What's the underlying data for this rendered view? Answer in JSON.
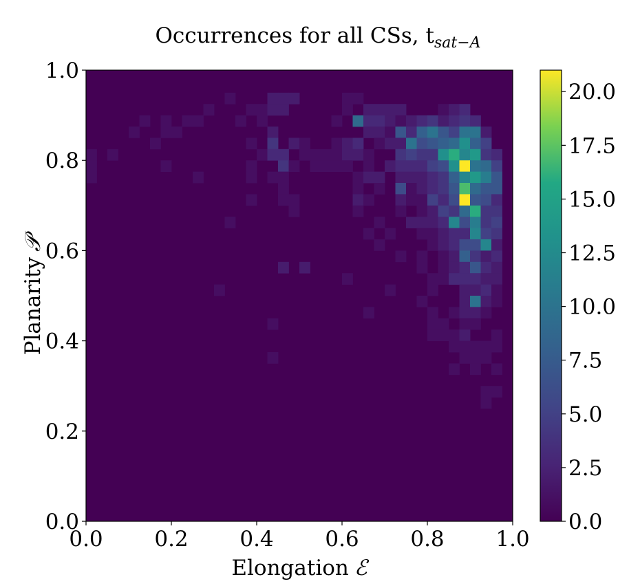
{
  "chart_data": {
    "type": "heatmap",
    "title": "Occurrences  for all CSs, t",
    "title_subscript": "sat−A",
    "xlabel": "Elongation",
    "xlabel_symbol": "ℰ",
    "ylabel": "Planarity",
    "ylabel_symbol": "𝒫",
    "xlim": [
      0.0,
      1.0
    ],
    "ylim": [
      0.0,
      1.0
    ],
    "xticks": [
      "0.0",
      "0.2",
      "0.4",
      "0.6",
      "0.8",
      "1.0"
    ],
    "yticks": [
      "0.0",
      "0.2",
      "0.4",
      "0.6",
      "0.8",
      "1.0"
    ],
    "bins": 40,
    "colormap": "viridis",
    "colorbar": {
      "min": 0,
      "max": 21,
      "ticks": [
        "0.0",
        "2.5",
        "5.0",
        "7.5",
        "10.0",
        "12.5",
        "15.0",
        "17.5",
        "20.0"
      ],
      "tick_values": [
        0,
        2.5,
        5,
        7.5,
        10,
        12.5,
        15,
        17.5,
        20
      ]
    },
    "grid": false,
    "cells": [
      [
        0.0125,
        0.8125,
        1
      ],
      [
        0.0125,
        0.7875,
        1
      ],
      [
        0.0125,
        0.7625,
        1
      ],
      [
        0.0625,
        0.8125,
        1
      ],
      [
        0.1125,
        0.8625,
        1
      ],
      [
        0.1375,
        0.8875,
        1
      ],
      [
        0.1625,
        0.8375,
        1
      ],
      [
        0.1875,
        0.8875,
        1
      ],
      [
        0.1875,
        0.8625,
        1
      ],
      [
        0.2125,
        0.8625,
        1
      ],
      [
        0.1875,
        0.7875,
        1
      ],
      [
        0.2375,
        0.8875,
        1
      ],
      [
        0.2625,
        0.8875,
        1
      ],
      [
        0.2625,
        0.7625,
        1
      ],
      [
        0.2875,
        0.9125,
        1
      ],
      [
        0.3125,
        0.5125,
        1
      ],
      [
        0.3375,
        0.9375,
        1
      ],
      [
        0.3375,
        0.6625,
        1
      ],
      [
        0.3625,
        0.8875,
        1
      ],
      [
        0.3875,
        0.7875,
        1
      ],
      [
        0.3875,
        0.7625,
        1
      ],
      [
        0.3875,
        0.8375,
        1
      ],
      [
        0.3875,
        0.7125,
        1
      ],
      [
        0.3875,
        0.9125,
        1
      ],
      [
        0.4125,
        0.9125,
        1
      ],
      [
        0.4125,
        0.8875,
        1
      ],
      [
        0.4125,
        0.8125,
        1
      ],
      [
        0.4375,
        0.9375,
        2
      ],
      [
        0.4375,
        0.9125,
        2
      ],
      [
        0.4375,
        0.8625,
        2
      ],
      [
        0.4375,
        0.8375,
        4
      ],
      [
        0.4375,
        0.8125,
        3
      ],
      [
        0.4375,
        0.7625,
        1
      ],
      [
        0.4375,
        0.4375,
        1
      ],
      [
        0.4375,
        0.3625,
        1
      ],
      [
        0.4625,
        0.9375,
        2
      ],
      [
        0.4625,
        0.9125,
        2
      ],
      [
        0.4625,
        0.8125,
        3
      ],
      [
        0.4625,
        0.7875,
        4
      ],
      [
        0.4625,
        0.7625,
        1
      ],
      [
        0.4625,
        0.7375,
        1
      ],
      [
        0.4625,
        0.7125,
        1
      ],
      [
        0.4625,
        0.5625,
        2
      ],
      [
        0.4875,
        0.9375,
        2
      ],
      [
        0.4875,
        0.8375,
        2
      ],
      [
        0.4875,
        0.7875,
        1
      ],
      [
        0.4875,
        0.7125,
        1
      ],
      [
        0.4875,
        0.6875,
        1
      ],
      [
        0.5125,
        0.8375,
        1
      ],
      [
        0.5125,
        0.8125,
        1
      ],
      [
        0.5125,
        0.5625,
        2
      ],
      [
        0.5375,
        0.8125,
        1
      ],
      [
        0.5375,
        0.7875,
        1
      ],
      [
        0.5625,
        0.7875,
        1
      ],
      [
        0.5625,
        0.8125,
        1
      ],
      [
        0.5875,
        0.8875,
        1
      ],
      [
        0.5875,
        0.8375,
        1
      ],
      [
        0.5875,
        0.8125,
        1
      ],
      [
        0.5875,
        0.7875,
        1
      ],
      [
        0.5875,
        0.7875,
        1
      ],
      [
        0.6125,
        0.9375,
        1
      ],
      [
        0.6125,
        0.9125,
        1
      ],
      [
        0.6125,
        0.8375,
        2
      ],
      [
        0.6125,
        0.8125,
        2
      ],
      [
        0.6125,
        0.7875,
        1
      ],
      [
        0.6125,
        0.5375,
        1
      ],
      [
        0.6375,
        0.9375,
        1
      ],
      [
        0.6375,
        0.8875,
        9
      ],
      [
        0.6375,
        0.8375,
        3
      ],
      [
        0.6375,
        0.8125,
        2
      ],
      [
        0.6375,
        0.7625,
        1
      ],
      [
        0.6375,
        0.7375,
        1
      ],
      [
        0.6375,
        0.7125,
        2
      ],
      [
        0.6375,
        0.6875,
        1
      ],
      [
        0.6625,
        0.9125,
        2
      ],
      [
        0.6625,
        0.8875,
        3
      ],
      [
        0.6625,
        0.8625,
        2
      ],
      [
        0.6625,
        0.8125,
        1
      ],
      [
        0.6625,
        0.7875,
        1
      ],
      [
        0.6625,
        0.7625,
        2
      ],
      [
        0.6625,
        0.7125,
        1
      ],
      [
        0.6625,
        0.6375,
        1
      ],
      [
        0.6625,
        0.4625,
        1
      ],
      [
        0.6875,
        0.9125,
        2
      ],
      [
        0.6875,
        0.8875,
        3
      ],
      [
        0.6875,
        0.8625,
        2
      ],
      [
        0.6875,
        0.8375,
        1
      ],
      [
        0.6875,
        0.7625,
        2
      ],
      [
        0.6875,
        0.7375,
        1
      ],
      [
        0.6875,
        0.6625,
        1
      ],
      [
        0.6875,
        0.6125,
        1
      ],
      [
        0.7125,
        0.9125,
        2
      ],
      [
        0.7125,
        0.8875,
        2
      ],
      [
        0.7125,
        0.8625,
        1
      ],
      [
        0.7125,
        0.8375,
        2
      ],
      [
        0.7125,
        0.7875,
        2
      ],
      [
        0.7125,
        0.6375,
        1
      ],
      [
        0.7125,
        0.5125,
        1
      ],
      [
        0.7375,
        0.9125,
        2
      ],
      [
        0.7375,
        0.8875,
        1
      ],
      [
        0.7375,
        0.8625,
        7
      ],
      [
        0.7375,
        0.8375,
        2
      ],
      [
        0.7375,
        0.8125,
        4
      ],
      [
        0.7375,
        0.7875,
        3
      ],
      [
        0.7375,
        0.7625,
        2
      ],
      [
        0.7375,
        0.7375,
        6
      ],
      [
        0.7375,
        0.7125,
        2
      ],
      [
        0.7375,
        0.6875,
        1
      ],
      [
        0.7375,
        0.5875,
        1
      ],
      [
        0.7625,
        0.8875,
        2
      ],
      [
        0.7625,
        0.8625,
        3
      ],
      [
        0.7625,
        0.8375,
        10
      ],
      [
        0.7625,
        0.8125,
        5
      ],
      [
        0.7625,
        0.7875,
        3
      ],
      [
        0.7625,
        0.7625,
        2
      ],
      [
        0.7625,
        0.7375,
        1
      ],
      [
        0.7625,
        0.7125,
        1
      ],
      [
        0.7625,
        0.6625,
        2
      ],
      [
        0.7875,
        0.8875,
        3
      ],
      [
        0.7875,
        0.8625,
        8
      ],
      [
        0.7875,
        0.8375,
        6
      ],
      [
        0.7875,
        0.8125,
        4
      ],
      [
        0.7875,
        0.7875,
        3
      ],
      [
        0.7875,
        0.7625,
        2
      ],
      [
        0.7875,
        0.7375,
        2
      ],
      [
        0.7875,
        0.7125,
        1
      ],
      [
        0.7875,
        0.6875,
        1
      ],
      [
        0.7875,
        0.6625,
        2
      ],
      [
        0.7875,
        0.6375,
        1
      ],
      [
        0.7875,
        0.5875,
        1
      ],
      [
        0.7875,
        0.5625,
        1
      ],
      [
        0.7875,
        0.4875,
        1
      ],
      [
        0.8125,
        0.8875,
        4
      ],
      [
        0.8125,
        0.8625,
        10
      ],
      [
        0.8125,
        0.8375,
        7
      ],
      [
        0.8125,
        0.8125,
        4
      ],
      [
        0.8125,
        0.7875,
        5
      ],
      [
        0.8125,
        0.7625,
        3
      ],
      [
        0.8125,
        0.7375,
        3
      ],
      [
        0.8125,
        0.7125,
        5
      ],
      [
        0.8125,
        0.6875,
        2
      ],
      [
        0.8125,
        0.6625,
        2
      ],
      [
        0.8125,
        0.6375,
        1
      ],
      [
        0.8125,
        0.6125,
        1
      ],
      [
        0.8125,
        0.5375,
        1
      ],
      [
        0.8125,
        0.5125,
        1
      ],
      [
        0.8125,
        0.4625,
        1
      ],
      [
        0.8125,
        0.4375,
        1
      ],
      [
        0.8125,
        0.4125,
        1
      ],
      [
        0.8375,
        0.9125,
        1
      ],
      [
        0.8375,
        0.8875,
        2
      ],
      [
        0.8375,
        0.8625,
        7
      ],
      [
        0.8375,
        0.8375,
        8
      ],
      [
        0.8375,
        0.8125,
        13
      ],
      [
        0.8375,
        0.7875,
        6
      ],
      [
        0.8375,
        0.7625,
        4
      ],
      [
        0.8375,
        0.7375,
        4
      ],
      [
        0.8375,
        0.7125,
        3
      ],
      [
        0.8375,
        0.6875,
        5
      ],
      [
        0.8375,
        0.6625,
        3
      ],
      [
        0.8375,
        0.6375,
        2
      ],
      [
        0.8375,
        0.6125,
        2
      ],
      [
        0.8375,
        0.5875,
        1
      ],
      [
        0.8375,
        0.5625,
        1
      ],
      [
        0.8375,
        0.5375,
        1
      ],
      [
        0.8375,
        0.4375,
        1
      ],
      [
        0.8375,
        0.4125,
        1
      ],
      [
        0.8625,
        0.9125,
        2
      ],
      [
        0.8625,
        0.8875,
        3
      ],
      [
        0.8625,
        0.8625,
        5
      ],
      [
        0.8625,
        0.8375,
        9
      ],
      [
        0.8625,
        0.8125,
        16
      ],
      [
        0.8625,
        0.7875,
        13
      ],
      [
        0.8625,
        0.7625,
        8
      ],
      [
        0.8625,
        0.7375,
        7
      ],
      [
        0.8625,
        0.7125,
        6
      ],
      [
        0.8625,
        0.6875,
        4
      ],
      [
        0.8625,
        0.6625,
        12
      ],
      [
        0.8625,
        0.6375,
        3
      ],
      [
        0.8625,
        0.6125,
        3
      ],
      [
        0.8625,
        0.5875,
        2
      ],
      [
        0.8625,
        0.5625,
        2
      ],
      [
        0.8625,
        0.5375,
        3
      ],
      [
        0.8625,
        0.4625,
        1
      ],
      [
        0.8625,
        0.4125,
        1
      ],
      [
        0.8625,
        0.3875,
        1
      ],
      [
        0.8625,
        0.3375,
        1
      ],
      [
        0.8875,
        0.9125,
        3
      ],
      [
        0.8875,
        0.8875,
        4
      ],
      [
        0.8875,
        0.8625,
        10
      ],
      [
        0.8875,
        0.8375,
        13
      ],
      [
        0.8875,
        0.8125,
        12
      ],
      [
        0.8875,
        0.7875,
        21
      ],
      [
        0.8875,
        0.7625,
        12
      ],
      [
        0.8875,
        0.7375,
        17
      ],
      [
        0.8875,
        0.7125,
        21
      ],
      [
        0.8875,
        0.6875,
        9
      ],
      [
        0.8875,
        0.6625,
        6
      ],
      [
        0.8875,
        0.6375,
        3
      ],
      [
        0.8875,
        0.6125,
        6
      ],
      [
        0.8875,
        0.5875,
        8
      ],
      [
        0.8875,
        0.5625,
        3
      ],
      [
        0.8875,
        0.5375,
        3
      ],
      [
        0.8875,
        0.5125,
        2
      ],
      [
        0.8875,
        0.4875,
        2
      ],
      [
        0.8875,
        0.4625,
        2
      ],
      [
        0.8875,
        0.4375,
        1
      ],
      [
        0.8875,
        0.4125,
        2
      ],
      [
        0.8875,
        0.3875,
        1
      ],
      [
        0.8875,
        0.3625,
        1
      ],
      [
        0.9125,
        0.8875,
        3
      ],
      [
        0.9125,
        0.8625,
        10
      ],
      [
        0.9125,
        0.8375,
        8
      ],
      [
        0.9125,
        0.8125,
        14
      ],
      [
        0.9125,
        0.7875,
        10
      ],
      [
        0.9125,
        0.7625,
        14
      ],
      [
        0.9125,
        0.7375,
        9
      ],
      [
        0.9125,
        0.7125,
        7
      ],
      [
        0.9125,
        0.6875,
        16
      ],
      [
        0.9125,
        0.6625,
        11
      ],
      [
        0.9125,
        0.6375,
        12
      ],
      [
        0.9125,
        0.6125,
        6
      ],
      [
        0.9125,
        0.5875,
        4
      ],
      [
        0.9125,
        0.5625,
        7
      ],
      [
        0.9125,
        0.5375,
        3
      ],
      [
        0.9125,
        0.5125,
        2
      ],
      [
        0.9125,
        0.4875,
        10
      ],
      [
        0.9125,
        0.4625,
        2
      ],
      [
        0.9125,
        0.4375,
        1
      ],
      [
        0.9125,
        0.3875,
        1
      ],
      [
        0.9125,
        0.3625,
        1
      ],
      [
        0.9125,
        0.3375,
        1
      ],
      [
        0.9375,
        0.8625,
        2
      ],
      [
        0.9375,
        0.8375,
        5
      ],
      [
        0.9375,
        0.8125,
        4
      ],
      [
        0.9375,
        0.7875,
        9
      ],
      [
        0.9375,
        0.7625,
        11
      ],
      [
        0.9375,
        0.7375,
        7
      ],
      [
        0.9375,
        0.7125,
        6
      ],
      [
        0.9375,
        0.6875,
        4
      ],
      [
        0.9375,
        0.6625,
        4
      ],
      [
        0.9375,
        0.6375,
        5
      ],
      [
        0.9375,
        0.6125,
        12
      ],
      [
        0.9375,
        0.5875,
        2
      ],
      [
        0.9375,
        0.5625,
        3
      ],
      [
        0.9375,
        0.5375,
        2
      ],
      [
        0.9375,
        0.5125,
        3
      ],
      [
        0.9375,
        0.4875,
        2
      ],
      [
        0.9375,
        0.4625,
        1
      ],
      [
        0.9375,
        0.3875,
        1
      ],
      [
        0.9375,
        0.3625,
        1
      ],
      [
        0.9375,
        0.2875,
        1
      ],
      [
        0.9375,
        0.2625,
        1
      ],
      [
        0.9625,
        0.8125,
        3
      ],
      [
        0.9625,
        0.7875,
        5
      ],
      [
        0.9625,
        0.7625,
        7
      ],
      [
        0.9625,
        0.7375,
        7
      ],
      [
        0.9625,
        0.7125,
        3
      ],
      [
        0.9625,
        0.6875,
        4
      ],
      [
        0.9625,
        0.6625,
        5
      ],
      [
        0.9625,
        0.6375,
        4
      ],
      [
        0.9625,
        0.6125,
        2
      ],
      [
        0.9625,
        0.5875,
        3
      ],
      [
        0.9625,
        0.5625,
        2
      ],
      [
        0.9625,
        0.5375,
        2
      ],
      [
        0.9625,
        0.5125,
        1
      ],
      [
        0.9625,
        0.4875,
        1
      ],
      [
        0.9625,
        0.4125,
        1
      ],
      [
        0.9625,
        0.3875,
        1
      ],
      [
        0.9625,
        0.3375,
        1
      ],
      [
        0.9625,
        0.2875,
        1
      ]
    ]
  }
}
